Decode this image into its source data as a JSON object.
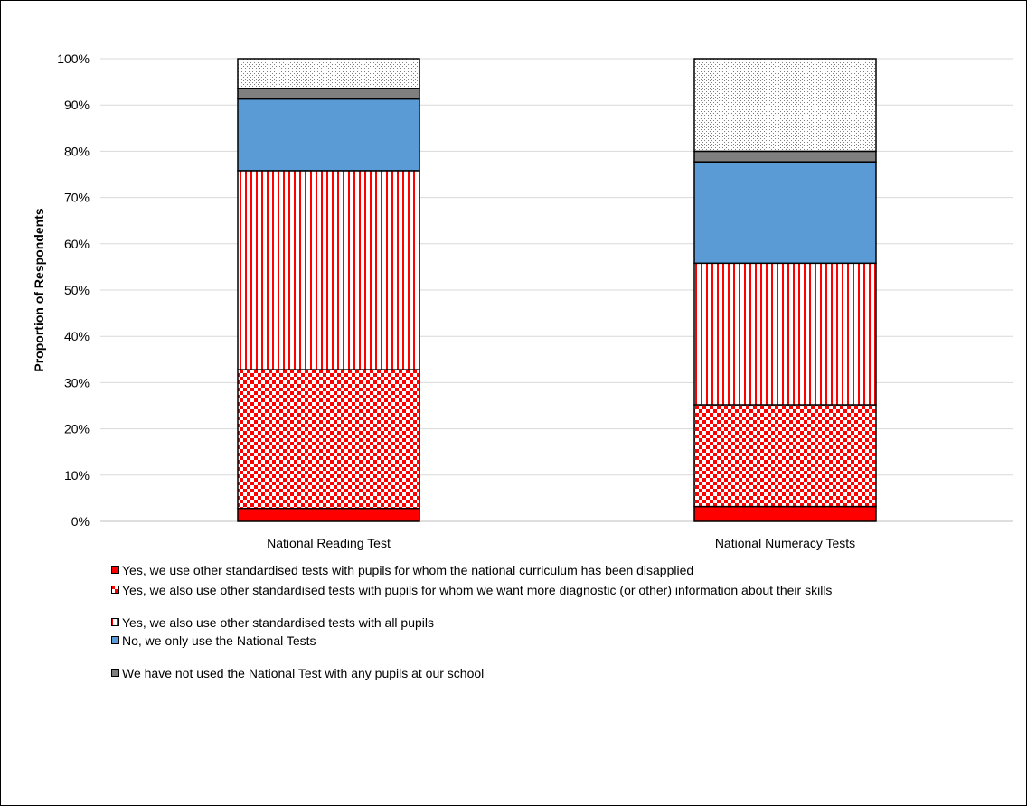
{
  "chart_data": {
    "type": "bar",
    "stacked": true,
    "title": "",
    "xlabel": "",
    "ylabel": "Proportion of Respondents",
    "ylim": [
      0,
      100
    ],
    "yticks": [
      "0%",
      "10%",
      "20%",
      "30%",
      "40%",
      "50%",
      "60%",
      "70%",
      "80%",
      "90%",
      "100%"
    ],
    "categories": [
      "National Reading Test",
      "National Numeracy Tests"
    ],
    "grid": true,
    "legend_position": "bottom",
    "series": [
      {
        "name": "Yes, we use other standardised tests with pupils for whom the national curriculum has been disapplied",
        "values": [
          2.8,
          3.2
        ],
        "color": "#ff0000",
        "pattern": "solid"
      },
      {
        "name": "Yes, we also use other standardised tests with pupils for whom we want more diagnostic (or other) information about their skills",
        "values": [
          30.0,
          22.0
        ],
        "color": "#ff0000",
        "pattern": "checkerboard"
      },
      {
        "name": "Yes, we also use other standardised tests with all pupils",
        "values": [
          43.0,
          30.6
        ],
        "color": "#ff0000",
        "pattern": "vertical-stripes"
      },
      {
        "name": "No, we only use the National Tests",
        "values": [
          15.5,
          21.9
        ],
        "color": "#5b9bd5",
        "pattern": "solid"
      },
      {
        "name": "We have not used the National Test with any pupils at our school",
        "values": [
          2.3,
          2.3
        ],
        "color": "#7f7f7f",
        "pattern": "solid"
      },
      {
        "name": "",
        "values": [
          6.4,
          20.0
        ],
        "color": "#a6a6a6",
        "pattern": "dots"
      }
    ]
  }
}
